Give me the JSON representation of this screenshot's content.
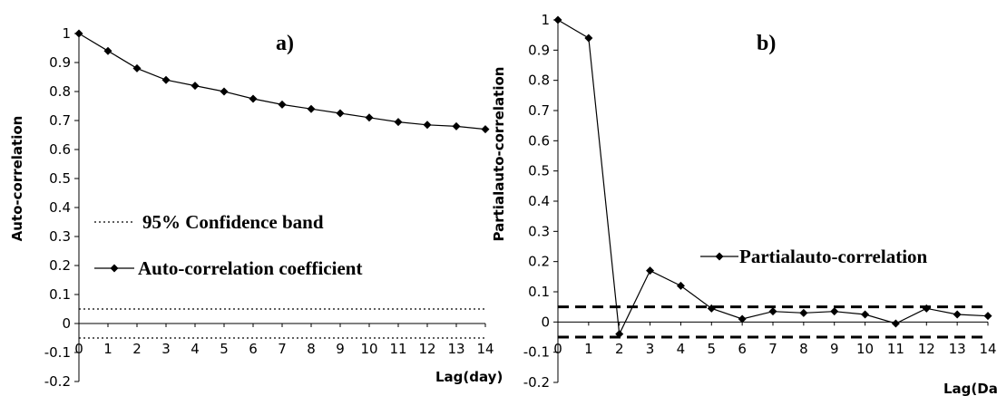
{
  "chart_data": [
    {
      "type": "line",
      "panel_label": "a)",
      "xlabel": "Lag(day)",
      "ylabel": "Auto-correlation",
      "x": [
        0,
        1,
        2,
        3,
        4,
        5,
        6,
        7,
        8,
        9,
        10,
        11,
        12,
        13,
        14
      ],
      "ylim": [
        -0.2,
        1
      ],
      "yticks": [
        1,
        0.9,
        0.8,
        0.7,
        0.6,
        0.5,
        0.4,
        0.3,
        0.2,
        0.1,
        0,
        -0.1,
        -0.2
      ],
      "xticks": [
        0,
        1,
        2,
        3,
        4,
        5,
        6,
        7,
        8,
        9,
        10,
        11,
        12,
        13,
        14
      ],
      "series": [
        {
          "name": "Auto-correlation coefficient",
          "marker": "diamond",
          "values": [
            1.0,
            0.94,
            0.88,
            0.84,
            0.82,
            0.8,
            0.775,
            0.755,
            0.74,
            0.725,
            0.71,
            0.695,
            0.685,
            0.68,
            0.67
          ]
        }
      ],
      "confidence_band": {
        "name": "95% Confidence band",
        "style": "dotted",
        "upper": 0.05,
        "lower": -0.05
      },
      "legend_placement": "lower-left",
      "grid": false
    },
    {
      "type": "line",
      "panel_label": "b)",
      "xlabel": "Lag(Day)",
      "ylabel": "Partialauto-correlation",
      "x": [
        0,
        1,
        2,
        3,
        4,
        5,
        6,
        7,
        8,
        9,
        10,
        11,
        12,
        13,
        14
      ],
      "ylim": [
        -0.2,
        1
      ],
      "yticks": [
        1,
        0.9,
        0.8,
        0.7,
        0.6,
        0.5,
        0.4,
        0.3,
        0.2,
        0.1,
        0,
        -0.1,
        -0.2
      ],
      "xticks": [
        0,
        1,
        2,
        3,
        4,
        5,
        6,
        7,
        8,
        9,
        10,
        11,
        12,
        13,
        14
      ],
      "series": [
        {
          "name": "Partialauto-correlation",
          "marker": "diamond",
          "values": [
            1.0,
            0.94,
            -0.04,
            0.17,
            0.12,
            0.045,
            0.01,
            0.035,
            0.03,
            0.035,
            0.025,
            -0.005,
            0.045,
            0.025,
            0.02
          ]
        }
      ],
      "confidence_band": {
        "style": "dashed",
        "upper": 0.05,
        "lower": -0.05
      },
      "legend_placement": "middle-right",
      "grid": false
    }
  ]
}
